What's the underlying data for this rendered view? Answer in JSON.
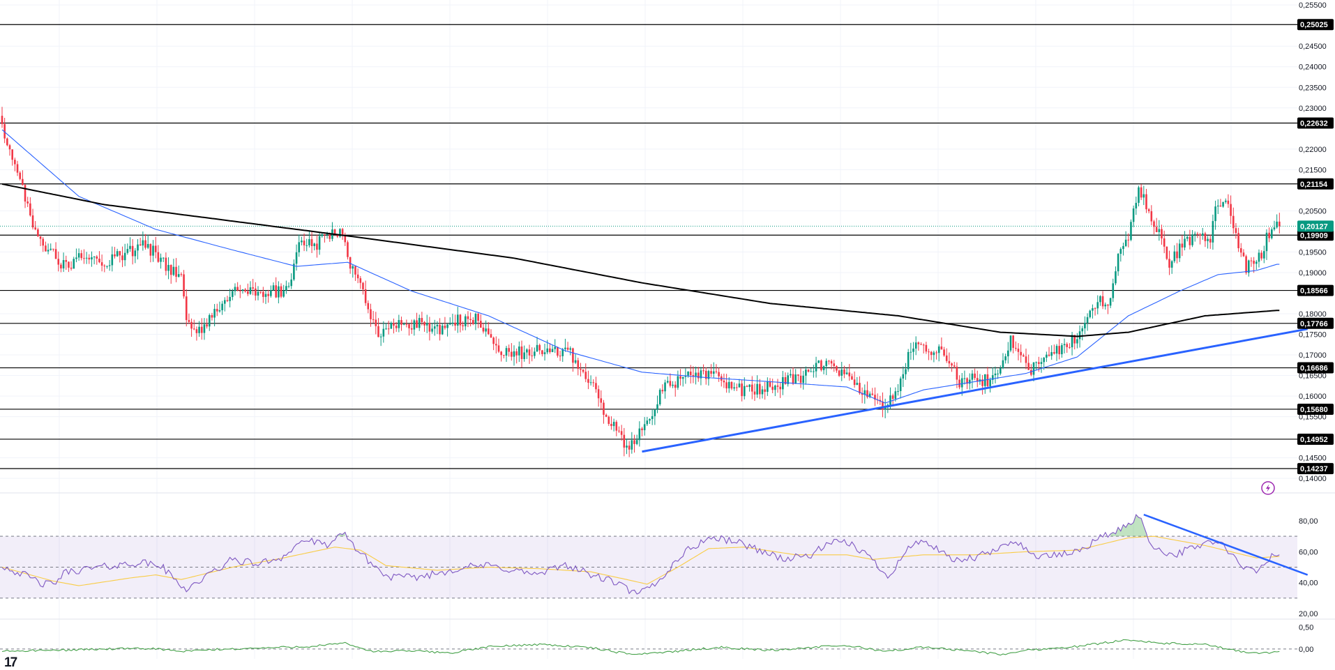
{
  "chart_data": [
    {
      "type": "candlestick",
      "panel": "price",
      "y_ticks": [
        "0,25500",
        "0,24500",
        "0,24000",
        "0,23500",
        "0,23000",
        "0,22000",
        "0,21500",
        "0,20500",
        "0,19500",
        "0,19000",
        "0,18000",
        "0,17500",
        "0,17000",
        "0,16500",
        "0,16000",
        "0,15500",
        "0,14500",
        "0,14000"
      ],
      "ylim": [
        0.1385,
        0.2552
      ],
      "levels": [
        {
          "label": "0,25025",
          "value": 0.25025
        },
        {
          "label": "0,22632",
          "value": 0.22632
        },
        {
          "label": "0,21154",
          "value": 0.21154
        },
        {
          "label": "0,19909",
          "value": 0.19909
        },
        {
          "label": "0,18566",
          "value": 0.18566
        },
        {
          "label": "0,17766",
          "value": 0.17766
        },
        {
          "label": "0,16686",
          "value": 0.16686
        },
        {
          "label": "0,15680",
          "value": 0.1568
        },
        {
          "label": "0,14952",
          "value": 0.14952
        },
        {
          "label": "0,14237",
          "value": 0.14237
        }
      ],
      "current_price": {
        "label": "0,20127",
        "value": 0.20127,
        "color": "#089981"
      },
      "close_anchors": [
        [
          0,
          0.2245
        ],
        [
          6,
          0.2155
        ],
        [
          12,
          0.2015
        ],
        [
          18,
          0.1955
        ],
        [
          24,
          0.1915
        ],
        [
          30,
          0.1935
        ],
        [
          40,
          0.1925
        ],
        [
          50,
          0.195
        ],
        [
          56,
          0.1965
        ],
        [
          62,
          0.1935
        ],
        [
          66,
          0.1905
        ],
        [
          70,
          0.1895
        ],
        [
          72,
          0.1785
        ],
        [
          76,
          0.1745
        ],
        [
          80,
          0.1775
        ],
        [
          86,
          0.183
        ],
        [
          92,
          0.186
        ],
        [
          100,
          0.1845
        ],
        [
          106,
          0.1855
        ],
        [
          112,
          0.1855
        ],
        [
          116,
          0.197
        ],
        [
          122,
          0.1965
        ],
        [
          128,
          0.1995
        ],
        [
          132,
          0.2
        ],
        [
          136,
          0.1925
        ],
        [
          140,
          0.188
        ],
        [
          146,
          0.1755
        ],
        [
          152,
          0.1765
        ],
        [
          158,
          0.178
        ],
        [
          166,
          0.177
        ],
        [
          172,
          0.1765
        ],
        [
          178,
          0.1785
        ],
        [
          186,
          0.1785
        ],
        [
          190,
          0.1745
        ],
        [
          196,
          0.1705
        ],
        [
          204,
          0.1705
        ],
        [
          210,
          0.171
        ],
        [
          216,
          0.1705
        ],
        [
          222,
          0.171
        ],
        [
          226,
          0.165
        ],
        [
          232,
          0.163
        ],
        [
          236,
          0.1545
        ],
        [
          240,
          0.1525
        ],
        [
          244,
          0.1465
        ],
        [
          248,
          0.1505
        ],
        [
          252,
          0.1535
        ],
        [
          258,
          0.162
        ],
        [
          264,
          0.1635
        ],
        [
          272,
          0.1655
        ],
        [
          280,
          0.1645
        ],
        [
          288,
          0.1615
        ],
        [
          296,
          0.1615
        ],
        [
          304,
          0.163
        ],
        [
          312,
          0.1645
        ],
        [
          318,
          0.1665
        ],
        [
          322,
          0.169
        ],
        [
          328,
          0.1655
        ],
        [
          332,
          0.164
        ],
        [
          338,
          0.1595
        ],
        [
          344,
          0.1575
        ],
        [
          350,
          0.1605
        ],
        [
          354,
          0.17
        ],
        [
          358,
          0.174
        ],
        [
          362,
          0.17
        ],
        [
          366,
          0.1725
        ],
        [
          370,
          0.168
        ],
        [
          374,
          0.1635
        ],
        [
          380,
          0.1645
        ],
        [
          386,
          0.1635
        ],
        [
          390,
          0.1665
        ],
        [
          394,
          0.1735
        ],
        [
          398,
          0.1705
        ],
        [
          402,
          0.1665
        ],
        [
          408,
          0.1695
        ],
        [
          414,
          0.1715
        ],
        [
          420,
          0.1745
        ],
        [
          424,
          0.1785
        ],
        [
          428,
          0.1835
        ],
        [
          432,
          0.1815
        ],
        [
          436,
          0.1935
        ],
        [
          440,
          0.1975
        ],
        [
          444,
          0.2115
        ],
        [
          448,
          0.2035
        ],
        [
          452,
          0.1995
        ],
        [
          456,
          0.1925
        ],
        [
          462,
          0.1975
        ],
        [
          468,
          0.1995
        ],
        [
          472,
          0.1965
        ],
        [
          474,
          0.2065
        ],
        [
          478,
          0.2085
        ],
        [
          482,
          0.1985
        ],
        [
          486,
          0.1915
        ],
        [
          490,
          0.1915
        ],
        [
          494,
          0.1985
        ],
        [
          498,
          0.2013
        ]
      ],
      "moving_averages": [
        {
          "color": "#2962ff",
          "anchors": [
            [
              0,
              0.2247
            ],
            [
              30,
              0.2085
            ],
            [
              60,
              0.2005
            ],
            [
              90,
              0.1955
            ],
            [
              115,
              0.1915
            ],
            [
              135,
              0.1925
            ],
            [
              160,
              0.1855
            ],
            [
              190,
              0.1795
            ],
            [
              220,
              0.171
            ],
            [
              250,
              0.1658
            ],
            [
              275,
              0.1645
            ],
            [
              300,
              0.1635
            ],
            [
              330,
              0.1622
            ],
            [
              345,
              0.1583
            ],
            [
              360,
              0.1615
            ],
            [
              400,
              0.1655
            ],
            [
              420,
              0.1695
            ],
            [
              440,
              0.1795
            ],
            [
              460,
              0.1855
            ],
            [
              475,
              0.1895
            ],
            [
              490,
              0.1905
            ],
            [
              498,
              0.192
            ]
          ]
        },
        {
          "color": "#000000",
          "anchors": [
            [
              0,
              0.2115
            ],
            [
              40,
              0.2065
            ],
            [
              90,
              0.2025
            ],
            [
              140,
              0.1985
            ],
            [
              200,
              0.1935
            ],
            [
              250,
              0.1875
            ],
            [
              300,
              0.1825
            ],
            [
              350,
              0.1795
            ],
            [
              390,
              0.1755
            ],
            [
              420,
              0.1745
            ],
            [
              440,
              0.1755
            ],
            [
              470,
              0.1795
            ],
            [
              498,
              0.1808
            ]
          ]
        }
      ],
      "trendlines": [
        {
          "color": "#2962ff",
          "points": [
            [
              250,
              0.1465
            ],
            [
              510,
              0.1763
            ]
          ]
        }
      ]
    },
    {
      "type": "line",
      "panel": "rsi",
      "y_ticks": [
        "80,00",
        "60,00",
        "40,00",
        "20,00"
      ],
      "ylim": [
        20,
        80
      ],
      "band": [
        30,
        70
      ],
      "midline": 50,
      "series": [
        {
          "color": "#7e57c2",
          "anchors": [
            [
              0,
              51
            ],
            [
              10,
              44
            ],
            [
              16,
              39
            ],
            [
              20,
              39
            ],
            [
              25,
              47
            ],
            [
              34,
              49
            ],
            [
              44,
              51
            ],
            [
              54,
              53
            ],
            [
              62,
              51
            ],
            [
              68,
              41
            ],
            [
              72,
              36
            ],
            [
              78,
              42
            ],
            [
              90,
              55
            ],
            [
              100,
              52
            ],
            [
              110,
              57
            ],
            [
              118,
              68
            ],
            [
              126,
              64
            ],
            [
              134,
              71
            ],
            [
              140,
              59
            ],
            [
              150,
              44
            ],
            [
              160,
              43
            ],
            [
              170,
              46
            ],
            [
              180,
              50
            ],
            [
              190,
              51
            ],
            [
              200,
              48
            ],
            [
              210,
              45
            ],
            [
              220,
              52
            ],
            [
              230,
              45
            ],
            [
              240,
              40
            ],
            [
              248,
              32
            ],
            [
              256,
              40
            ],
            [
              266,
              59
            ],
            [
              276,
              69
            ],
            [
              286,
              67
            ],
            [
              296,
              61
            ],
            [
              306,
              55
            ],
            [
              316,
              58
            ],
            [
              324,
              66
            ],
            [
              332,
              65
            ],
            [
              340,
              55
            ],
            [
              346,
              44
            ],
            [
              354,
              62
            ],
            [
              360,
              68
            ],
            [
              366,
              60
            ],
            [
              372,
              54
            ],
            [
              380,
              56
            ],
            [
              390,
              62
            ],
            [
              396,
              68
            ],
            [
              402,
              58
            ],
            [
              410,
              57
            ],
            [
              420,
              60
            ],
            [
              430,
              70
            ],
            [
              438,
              75
            ],
            [
              444,
              84
            ],
            [
              448,
              67
            ],
            [
              452,
              61
            ],
            [
              458,
              58
            ],
            [
              466,
              63
            ],
            [
              472,
              67
            ],
            [
              478,
              63
            ],
            [
              484,
              50
            ],
            [
              490,
              47
            ],
            [
              496,
              57
            ],
            [
              500,
              59
            ]
          ]
        },
        {
          "color": "#f9cc45",
          "anchors": [
            [
              0,
              50
            ],
            [
              20,
              41
            ],
            [
              30,
              38
            ],
            [
              50,
              43
            ],
            [
              60,
              45
            ],
            [
              70,
              42
            ],
            [
              90,
              50
            ],
            [
              110,
              56
            ],
            [
              130,
              63
            ],
            [
              140,
              61
            ],
            [
              150,
              51
            ],
            [
              170,
              48
            ],
            [
              190,
              50
            ],
            [
              210,
              49
            ],
            [
              230,
              47
            ],
            [
              244,
              42
            ],
            [
              252,
              39
            ],
            [
              264,
              50
            ],
            [
              276,
              62
            ],
            [
              290,
              63
            ],
            [
              310,
              58
            ],
            [
              330,
              58
            ],
            [
              340,
              55
            ],
            [
              360,
              58
            ],
            [
              380,
              58
            ],
            [
              400,
              60
            ],
            [
              420,
              61
            ],
            [
              440,
              69
            ],
            [
              450,
              70
            ],
            [
              470,
              64
            ],
            [
              490,
              56
            ],
            [
              500,
              57
            ]
          ]
        }
      ],
      "trendlines": [
        {
          "color": "#2962ff",
          "points": [
            [
              446,
              84
            ],
            [
              510,
              45
            ]
          ]
        }
      ]
    },
    {
      "type": "line",
      "panel": "oscillator",
      "y_ticks": [
        "0,50",
        "0,00"
      ],
      "ylim": [
        -0.13,
        0.56
      ],
      "midline": 0,
      "series": [
        {
          "color": "#43a047",
          "anchors": [
            [
              0,
              -0.05
            ],
            [
              20,
              -0.03
            ],
            [
              40,
              0.0
            ],
            [
              60,
              0.01
            ],
            [
              70,
              -0.06
            ],
            [
              80,
              -0.02
            ],
            [
              100,
              0.02
            ],
            [
              120,
              0.06
            ],
            [
              134,
              0.13
            ],
            [
              145,
              -0.06
            ],
            [
              160,
              -0.04
            ],
            [
              175,
              -0.09
            ],
            [
              190,
              0.05
            ],
            [
              210,
              0.11
            ],
            [
              230,
              0.03
            ],
            [
              245,
              -0.12
            ],
            [
              260,
              -0.07
            ],
            [
              280,
              0.04
            ],
            [
              300,
              -0.03
            ],
            [
              320,
              0.05
            ],
            [
              330,
              0.08
            ],
            [
              345,
              -0.05
            ],
            [
              360,
              0.04
            ],
            [
              380,
              -0.05
            ],
            [
              390,
              -0.13
            ],
            [
              400,
              -0.03
            ],
            [
              420,
              0.06
            ],
            [
              440,
              0.22
            ],
            [
              450,
              0.14
            ],
            [
              470,
              0.1
            ],
            [
              480,
              -0.02
            ],
            [
              490,
              -0.1
            ],
            [
              500,
              -0.07
            ]
          ]
        }
      ]
    }
  ]
}
